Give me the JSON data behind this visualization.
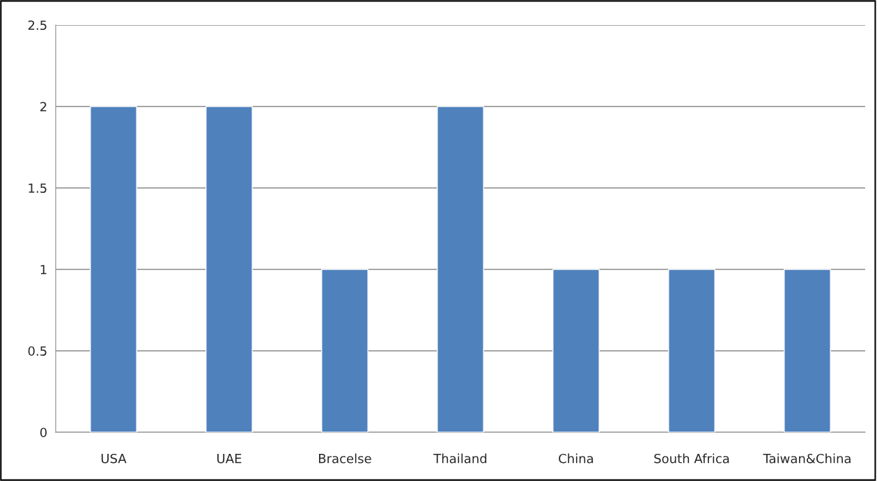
{
  "chart_data": {
    "type": "bar",
    "categories": [
      "USA",
      "UAE",
      "Bracelse",
      "Thailand",
      "China",
      "South Africa",
      "Taiwan&China"
    ],
    "values": [
      2,
      2,
      1,
      2,
      1,
      1,
      1
    ],
    "color": "#4f81bd",
    "ylim": [
      0,
      2.5
    ],
    "yticks": [
      0,
      {
        "value": 0.5,
        "label": "0.5"
      },
      1,
      {
        "value": 1.5,
        "label": "1.5"
      },
      2,
      {
        "value": 2.5,
        "label": "2.5"
      }
    ],
    "grid": "y",
    "legend": false
  }
}
